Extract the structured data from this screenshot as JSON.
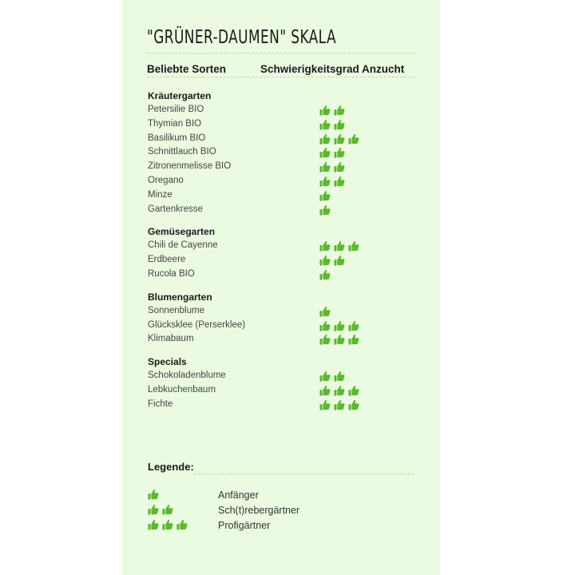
{
  "title": "\"GRÜNER-DAUMEN\" SKALA",
  "columns": {
    "left": "Beliebte Sorten",
    "right": "Schwierigkeitsgrad Anzucht"
  },
  "colors": {
    "thumb": "#5cb82e",
    "background": "#eafbe1"
  },
  "icon": "thumbs-up-icon",
  "sections": [
    {
      "name": "Kräutergarten",
      "items": [
        {
          "label": "Petersilie BIO",
          "level": 2
        },
        {
          "label": "Thymian BIO",
          "level": 2
        },
        {
          "label": "Basilikum BIO",
          "level": 3
        },
        {
          "label": "Schnittlauch BIO",
          "level": 2
        },
        {
          "label": "Zitronenmelisse BIO",
          "level": 2
        },
        {
          "label": "Oregano",
          "level": 2
        },
        {
          "label": "Minze",
          "level": 1
        },
        {
          "label": "Gartenkresse",
          "level": 1
        }
      ]
    },
    {
      "name": "Gemüsegarten",
      "items": [
        {
          "label": "Chili de Cayenne",
          "level": 3
        },
        {
          "label": "Erdbeere",
          "level": 2
        },
        {
          "label": "Rucola BIO",
          "level": 1
        }
      ]
    },
    {
      "name": "Blumengarten",
      "items": [
        {
          "label": "Sonnenblume",
          "level": 1
        },
        {
          "label": "Glücksklee (Perserklee)",
          "level": 3
        },
        {
          "label": "Klimabaum",
          "level": 3
        }
      ]
    },
    {
      "name": "Specials",
      "items": [
        {
          "label": "Schokoladenblume",
          "level": 2
        },
        {
          "label": "Lebkuchenbaum",
          "level": 3
        },
        {
          "label": "Fichte",
          "level": 3
        }
      ]
    }
  ],
  "legend": {
    "title": "Legende:",
    "items": [
      {
        "label": "Anfänger",
        "level": 1
      },
      {
        "label": "Sch(t)rebergärtner",
        "level": 2
      },
      {
        "label": "Profigärtner",
        "level": 3
      }
    ]
  }
}
